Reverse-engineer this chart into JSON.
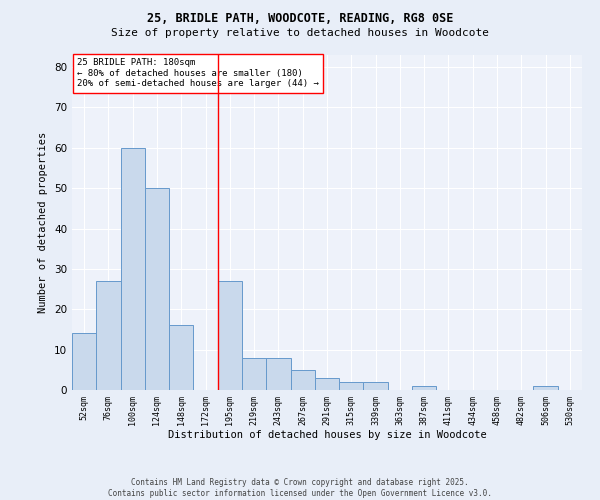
{
  "title_line1": "25, BRIDLE PATH, WOODCOTE, READING, RG8 0SE",
  "title_line2": "Size of property relative to detached houses in Woodcote",
  "xlabel": "Distribution of detached houses by size in Woodcote",
  "ylabel": "Number of detached properties",
  "categories": [
    "52sqm",
    "76sqm",
    "100sqm",
    "124sqm",
    "148sqm",
    "172sqm",
    "195sqm",
    "219sqm",
    "243sqm",
    "267sqm",
    "291sqm",
    "315sqm",
    "339sqm",
    "363sqm",
    "387sqm",
    "411sqm",
    "434sqm",
    "458sqm",
    "482sqm",
    "506sqm",
    "530sqm"
  ],
  "values": [
    14,
    27,
    60,
    50,
    16,
    0,
    27,
    8,
    8,
    5,
    3,
    2,
    2,
    0,
    1,
    0,
    0,
    0,
    0,
    1,
    0
  ],
  "bar_color": "#c9d9ec",
  "bar_edge_color": "#6699cc",
  "ylim": [
    0,
    83
  ],
  "yticks": [
    0,
    10,
    20,
    30,
    40,
    50,
    60,
    70,
    80
  ],
  "red_line_x": 5.5,
  "annotation_title": "25 BRIDLE PATH: 180sqm",
  "annotation_line1": "← 80% of detached houses are smaller (180)",
  "annotation_line2": "20% of semi-detached houses are larger (44) →",
  "footer_line1": "Contains HM Land Registry data © Crown copyright and database right 2025.",
  "footer_line2": "Contains public sector information licensed under the Open Government Licence v3.0.",
  "background_color": "#e8eef8",
  "plot_bg_color": "#eef2fa",
  "title1_fontsize": 8.5,
  "title2_fontsize": 8.0,
  "xlabel_fontsize": 7.5,
  "ylabel_fontsize": 7.5,
  "xtick_fontsize": 6.0,
  "ytick_fontsize": 7.5,
  "ann_fontsize": 6.5,
  "footer_fontsize": 5.5
}
